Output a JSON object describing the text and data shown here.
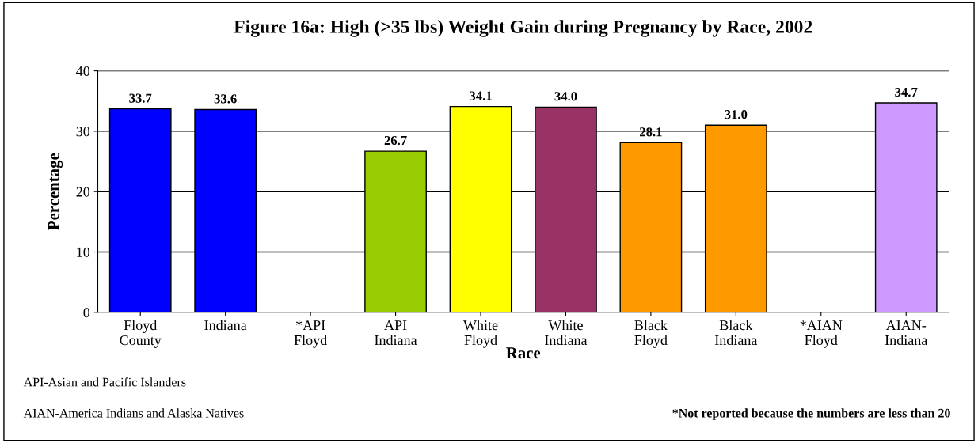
{
  "chart_data": {
    "type": "bar",
    "title": "Figure 16a: High (>35 lbs) Weight Gain during Pregnancy by Race, 2002",
    "xlabel": "Race",
    "ylabel": "Percentage",
    "categories": [
      "Floyd\nCounty",
      "Indiana",
      "*API\nFloyd",
      "API\nIndiana",
      "White\nFloyd",
      "White\nIndiana",
      "Black\nFloyd",
      "Black\nIndiana",
      "*AIAN\nFloyd",
      "AIAN-\nIndiana"
    ],
    "values": [
      33.7,
      33.6,
      null,
      26.7,
      34.1,
      34.0,
      28.1,
      31.0,
      null,
      34.7
    ],
    "value_labels": [
      "33.7",
      "33.6",
      null,
      "26.7",
      "34.1",
      "34.0",
      "28.1",
      "31.0",
      null,
      "34.7"
    ],
    "colors": [
      "#0000ff",
      "#0000ff",
      "#ffffff",
      "#99cc00",
      "#ffff00",
      "#993366",
      "#ff9900",
      "#ff9900",
      "#ffffff",
      "#cc99ff"
    ],
    "ylim": [
      0,
      40
    ],
    "yticks": [
      0,
      10,
      20,
      30,
      40
    ],
    "grid": "y",
    "annotations": [
      "API-Asian and Pacific Islanders",
      "AIAN-America Indians and Alaska Natives",
      "*Not reported because the numbers are less than 20"
    ]
  }
}
